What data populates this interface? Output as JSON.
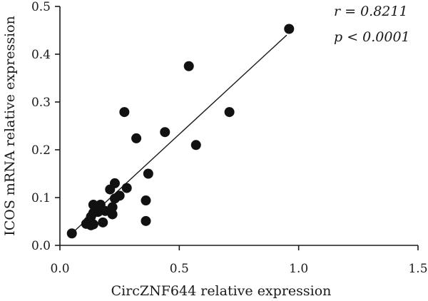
{
  "chart_data": {
    "type": "scatter",
    "xlabel": "CircZNF644 relative expression",
    "ylabel": "ICOS mRNA relative expression",
    "xlim": [
      0.0,
      1.5
    ],
    "ylim": [
      0.0,
      0.5
    ],
    "x_ticks": [
      "0.0",
      "0.5",
      "1.0",
      "1.5"
    ],
    "y_ticks": [
      "0.0",
      "0.1",
      "0.2",
      "0.3",
      "0.4",
      "0.5"
    ],
    "x_tick_values": [
      0.0,
      0.5,
      1.0,
      1.5
    ],
    "y_tick_values": [
      0.0,
      0.1,
      0.2,
      0.3,
      0.4,
      0.5
    ],
    "grid": false,
    "points": [
      {
        "x": 0.05,
        "y": 0.025
      },
      {
        "x": 0.11,
        "y": 0.045
      },
      {
        "x": 0.12,
        "y": 0.05
      },
      {
        "x": 0.13,
        "y": 0.042
      },
      {
        "x": 0.13,
        "y": 0.06
      },
      {
        "x": 0.14,
        "y": 0.044
      },
      {
        "x": 0.14,
        "y": 0.068
      },
      {
        "x": 0.14,
        "y": 0.085
      },
      {
        "x": 0.15,
        "y": 0.075
      },
      {
        "x": 0.16,
        "y": 0.07
      },
      {
        "x": 0.17,
        "y": 0.078
      },
      {
        "x": 0.17,
        "y": 0.085
      },
      {
        "x": 0.18,
        "y": 0.048
      },
      {
        "x": 0.19,
        "y": 0.072
      },
      {
        "x": 0.21,
        "y": 0.117
      },
      {
        "x": 0.22,
        "y": 0.065
      },
      {
        "x": 0.22,
        "y": 0.08
      },
      {
        "x": 0.23,
        "y": 0.13
      },
      {
        "x": 0.23,
        "y": 0.098
      },
      {
        "x": 0.25,
        "y": 0.104
      },
      {
        "x": 0.27,
        "y": 0.279
      },
      {
        "x": 0.28,
        "y": 0.12
      },
      {
        "x": 0.32,
        "y": 0.224
      },
      {
        "x": 0.36,
        "y": 0.051
      },
      {
        "x": 0.36,
        "y": 0.094
      },
      {
        "x": 0.37,
        "y": 0.15
      },
      {
        "x": 0.44,
        "y": 0.237
      },
      {
        "x": 0.54,
        "y": 0.375
      },
      {
        "x": 0.57,
        "y": 0.21
      },
      {
        "x": 0.71,
        "y": 0.279
      },
      {
        "x": 0.96,
        "y": 0.453
      }
    ],
    "fit_line": {
      "x": [
        0.05,
        0.95
      ],
      "y": [
        0.025,
        0.44
      ]
    },
    "annotations": [
      "r = 0.8211",
      "p < 0.0001"
    ]
  }
}
